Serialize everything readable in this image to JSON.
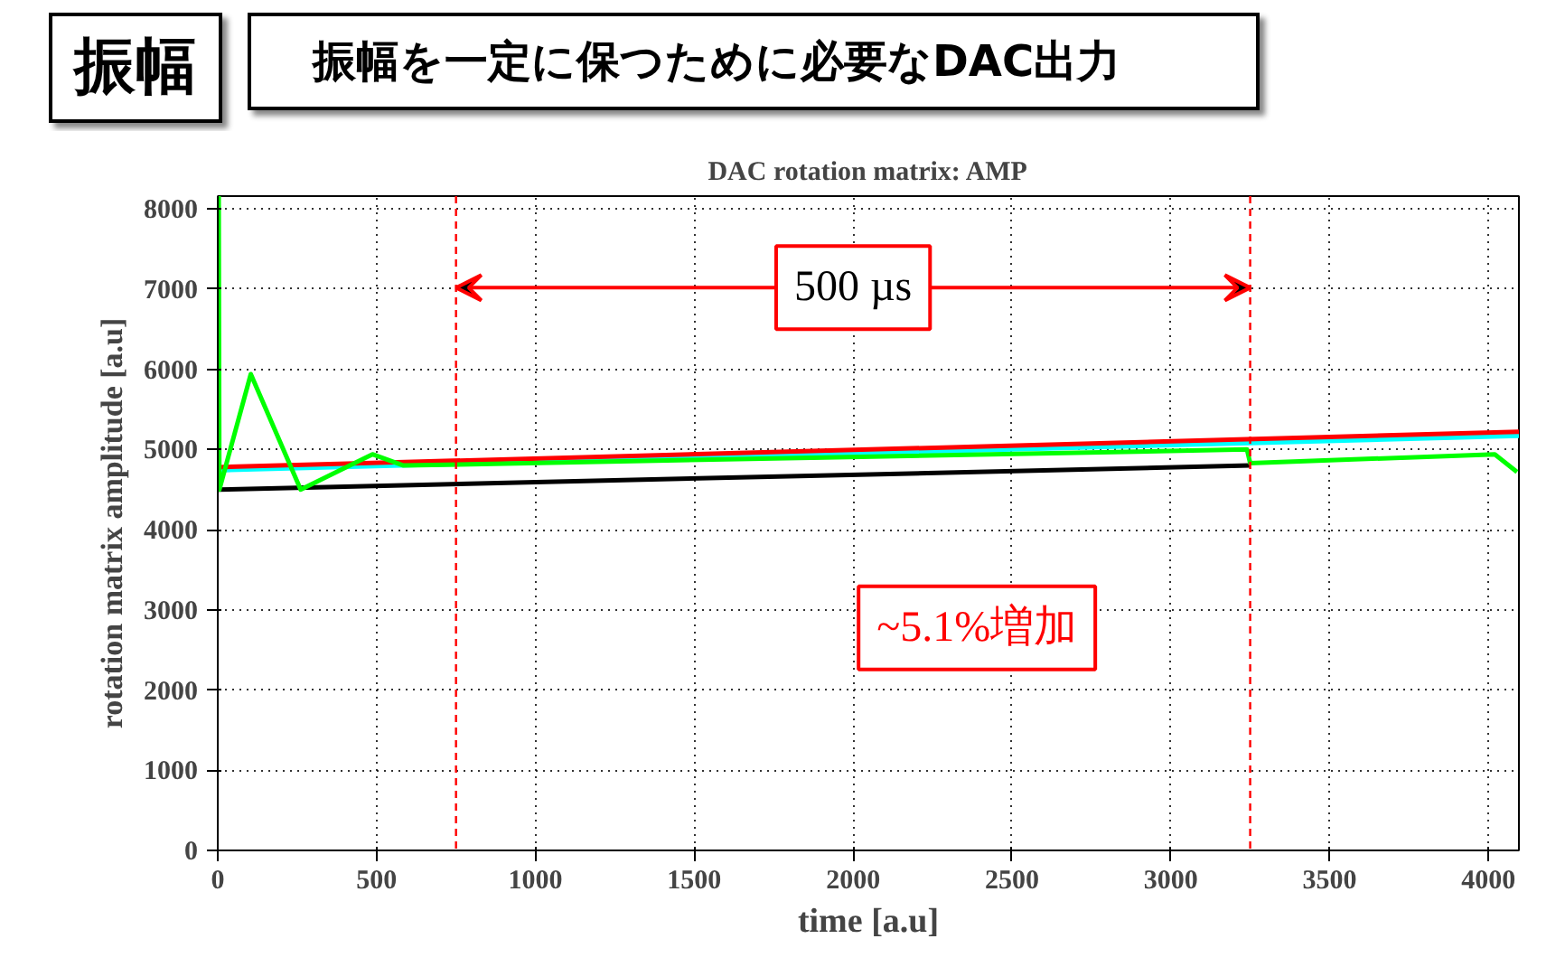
{
  "chart_data": {
    "type": "line",
    "title": "DAC rotation matrix: AMP",
    "subtitle": "振幅を一定に保つために必要なDAC出力",
    "xlabel": "time [a.u]",
    "ylabel": "rotation matrix amplitude [a.u]",
    "annotations": [
      "振幅",
      "500 µs",
      "~5.1%増加"
    ],
    "xlim": [
      0,
      4096
    ],
    "ylim": [
      0,
      8160
    ],
    "xticks": [
      0,
      500,
      1000,
      1500,
      2000,
      2500,
      3000,
      3500,
      4000
    ],
    "yticks": [
      0,
      1000,
      2000,
      3000,
      4000,
      5000,
      6000,
      7000,
      8000
    ],
    "grid": true,
    "marker": "none",
    "line_style": "solid",
    "ref_lines": [
      {
        "axis": "x",
        "value": 750,
        "color": "#ff0000",
        "line_style": "dashed"
      },
      {
        "axis": "x",
        "value": 3250,
        "color": "#ff0000",
        "line_style": "dashed"
      }
    ],
    "series": [
      {
        "color": "#000000",
        "x": [
          0,
          3250
        ],
        "values": [
          4500,
          4800
        ]
      },
      {
        "color": "#00ffff",
        "x": [
          0,
          4096
        ],
        "values": [
          4740,
          5170
        ]
      },
      {
        "color": "#ff0000",
        "x": [
          0,
          4096
        ],
        "values": [
          4780,
          5220
        ]
      },
      {
        "color": "#00ff00",
        "x": [
          3,
          5,
          104,
          261,
          487,
          585,
          3240,
          3250,
          4020,
          4090
        ],
        "values": [
          8160,
          4500,
          5940,
          4500,
          4940,
          4800,
          5000,
          4830,
          4940,
          4720
        ]
      }
    ]
  }
}
